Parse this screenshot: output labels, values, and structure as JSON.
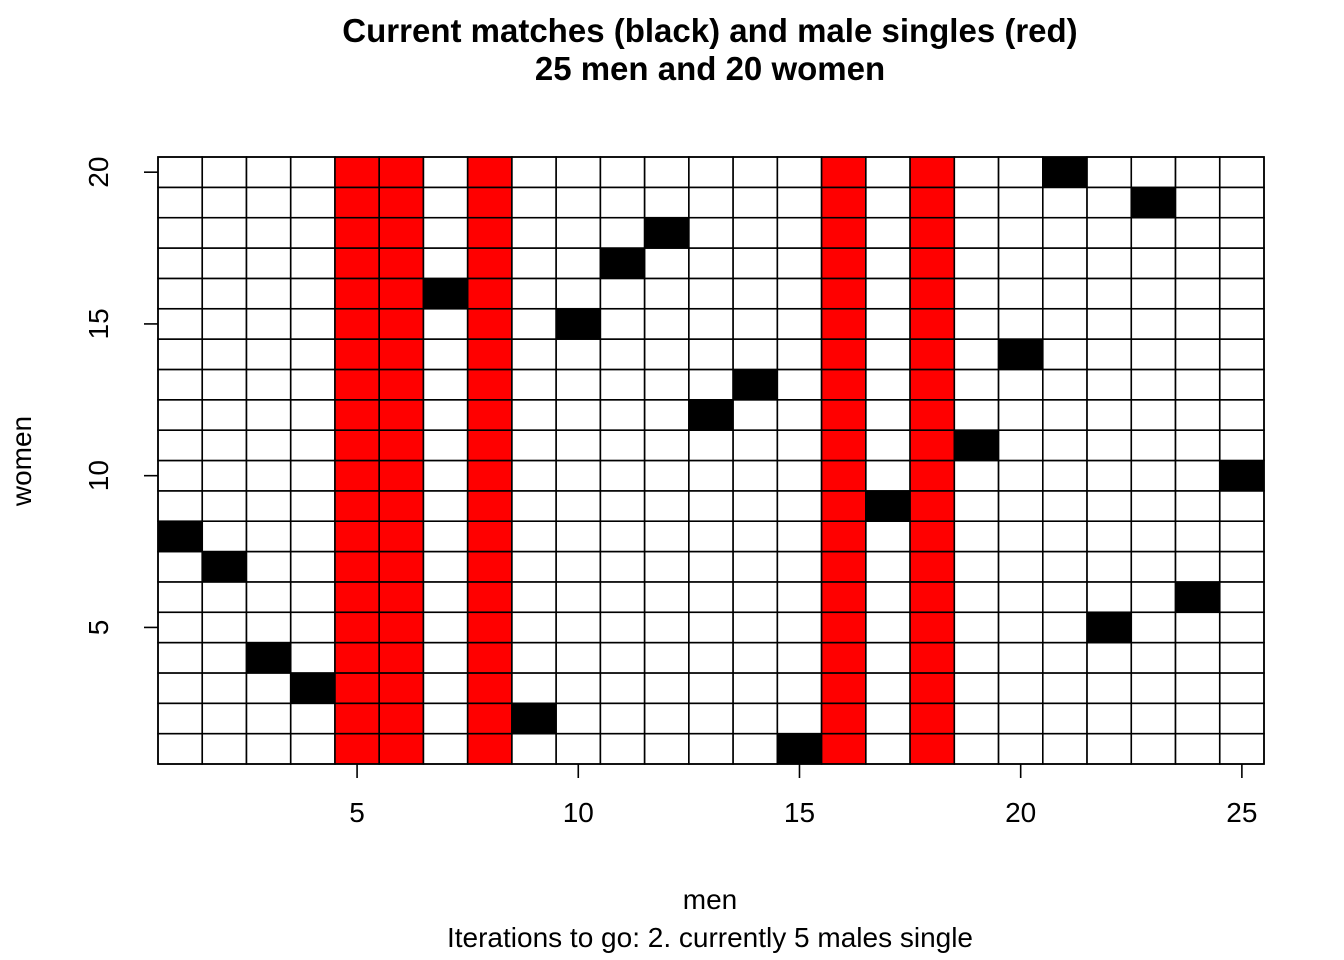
{
  "chart_data": {
    "type": "heatmap",
    "title": "Current matches (black) and male singles (red)",
    "subtitle": "25 men and 20 women",
    "xlabel": "men",
    "ylabel": "women",
    "sub": "Iterations to go: 2. currently 5 males single",
    "n_men": 25,
    "n_women": 20,
    "xlim": [
      0.5,
      25.5
    ],
    "ylim": [
      0.5,
      20.5
    ],
    "xticks": [
      5,
      10,
      15,
      20,
      25
    ],
    "yticks": [
      5,
      10,
      15,
      20
    ],
    "single_men": [
      5,
      6,
      8,
      16,
      18
    ],
    "matches": [
      {
        "man": 1,
        "woman": 8
      },
      {
        "man": 2,
        "woman": 7
      },
      {
        "man": 3,
        "woman": 4
      },
      {
        "man": 4,
        "woman": 3
      },
      {
        "man": 7,
        "woman": 16
      },
      {
        "man": 9,
        "woman": 2
      },
      {
        "man": 10,
        "woman": 15
      },
      {
        "man": 11,
        "woman": 17
      },
      {
        "man": 12,
        "woman": 18
      },
      {
        "man": 13,
        "woman": 12
      },
      {
        "man": 14,
        "woman": 13
      },
      {
        "man": 15,
        "woman": 1
      },
      {
        "man": 17,
        "woman": 9
      },
      {
        "man": 19,
        "woman": 11
      },
      {
        "man": 20,
        "woman": 14
      },
      {
        "man": 21,
        "woman": 20
      },
      {
        "man": 22,
        "woman": 5
      },
      {
        "man": 23,
        "woman": 19
      },
      {
        "man": 24,
        "woman": 6
      },
      {
        "man": 25,
        "woman": 10
      }
    ],
    "colors": {
      "match": "#000000",
      "single": "#ff0000",
      "empty": "#ffffff",
      "grid": "#000000"
    }
  }
}
